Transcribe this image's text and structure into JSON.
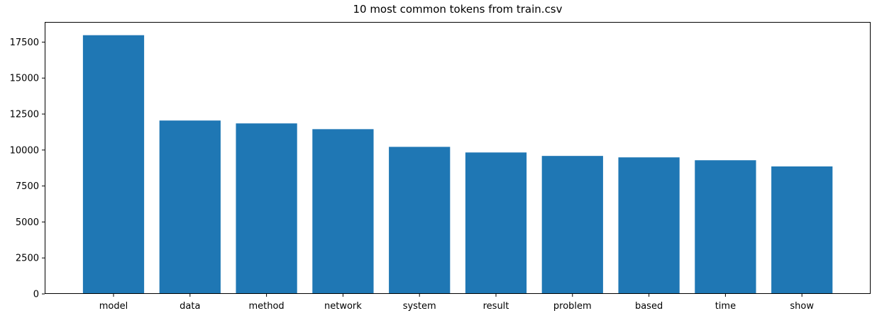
{
  "chart_data": {
    "type": "bar",
    "title": "10 most common tokens from train.csv",
    "xlabel": "",
    "ylabel": "",
    "categories": [
      "model",
      "data",
      "method",
      "network",
      "system",
      "result",
      "problem",
      "based",
      "time",
      "show"
    ],
    "values": [
      17980,
      12050,
      11850,
      11450,
      10220,
      9830,
      9590,
      9490,
      9290,
      8860
    ],
    "ylim": [
      0,
      18900
    ],
    "yticks": [
      0,
      2500,
      5000,
      7500,
      10000,
      12500,
      15000,
      17500
    ],
    "ytick_labels": [
      "0",
      "2500",
      "5000",
      "7500",
      "10000",
      "12500",
      "15000",
      "17500"
    ],
    "bar_color": "#1f77b4",
    "grid": false,
    "legend": "none"
  }
}
